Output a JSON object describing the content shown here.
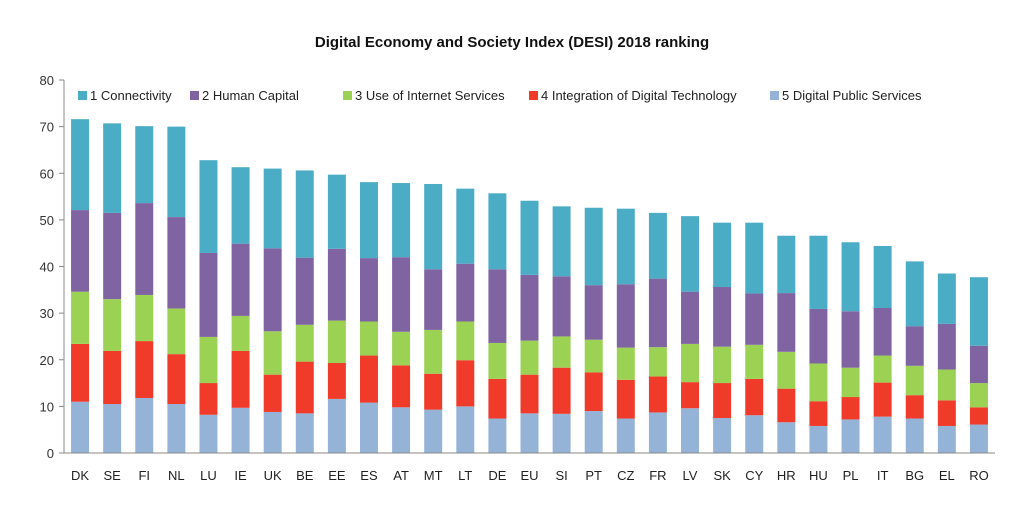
{
  "chart_data": {
    "type": "bar",
    "stacked": true,
    "title": "Digital Economy and Society Index (DESI) 2018 ranking",
    "xlabel": "",
    "ylabel": "",
    "ylim": [
      0,
      80
    ],
    "yticks": [
      0,
      10,
      20,
      30,
      40,
      50,
      60,
      70,
      80
    ],
    "grid": false,
    "legend_position": "top",
    "categories": [
      "DK",
      "SE",
      "FI",
      "NL",
      "LU",
      "IE",
      "UK",
      "BE",
      "EE",
      "ES",
      "AT",
      "MT",
      "LT",
      "DE",
      "EU",
      "SI",
      "PT",
      "CZ",
      "FR",
      "LV",
      "SK",
      "CY",
      "HR",
      "HU",
      "PL",
      "IT",
      "BG",
      "EL",
      "RO"
    ],
    "series": [
      {
        "name": "5 Digital Public Services",
        "color": "#95b3d7",
        "values": [
          11.0,
          10.5,
          11.8,
          10.5,
          8.2,
          9.7,
          8.8,
          8.5,
          11.6,
          10.8,
          9.8,
          9.3,
          10.0,
          7.4,
          8.5,
          8.4,
          9.0,
          7.4,
          8.7,
          9.6,
          7.5,
          8.1,
          6.6,
          5.8,
          7.2,
          7.8,
          7.4,
          5.8,
          6.1
        ]
      },
      {
        "name": "4 Integration of Digital Technology",
        "color": "#f03a2a",
        "values": [
          12.4,
          11.4,
          12.2,
          10.7,
          6.8,
          12.2,
          8.0,
          11.1,
          7.7,
          10.1,
          9.0,
          7.7,
          9.9,
          8.5,
          8.3,
          9.9,
          8.3,
          8.3,
          7.7,
          5.6,
          7.5,
          7.8,
          7.2,
          5.3,
          4.8,
          7.3,
          5.0,
          5.5,
          3.7
        ]
      },
      {
        "name": "3 Use of Internet Services",
        "color": "#9bd254",
        "values": [
          11.2,
          11.1,
          9.9,
          9.8,
          9.9,
          7.5,
          9.3,
          7.9,
          9.1,
          7.3,
          7.2,
          9.4,
          8.3,
          7.7,
          7.3,
          6.7,
          7.0,
          6.9,
          6.3,
          8.2,
          7.8,
          7.3,
          7.9,
          8.1,
          6.3,
          5.8,
          6.3,
          6.6,
          5.2
        ]
      },
      {
        "name": "2 Human Capital",
        "color": "#8064a2",
        "values": [
          17.5,
          18.5,
          19.7,
          19.6,
          18.0,
          15.5,
          17.8,
          14.4,
          15.4,
          13.6,
          16.0,
          13.0,
          12.4,
          15.8,
          14.1,
          12.9,
          11.7,
          13.6,
          14.7,
          11.2,
          12.8,
          11.0,
          12.6,
          11.7,
          12.1,
          10.2,
          8.5,
          9.8,
          8.0
        ]
      },
      {
        "name": "1 Connectivity",
        "color": "#4bacc6",
        "values": [
          19.5,
          19.2,
          16.5,
          19.4,
          19.9,
          16.4,
          17.1,
          18.7,
          15.9,
          16.3,
          15.9,
          18.3,
          16.1,
          16.3,
          15.9,
          15.0,
          16.6,
          16.2,
          14.1,
          16.2,
          13.8,
          15.2,
          12.3,
          15.7,
          14.8,
          13.3,
          13.9,
          10.8,
          14.7
        ]
      }
    ],
    "legend_order": [
      "1 Connectivity",
      "2 Human Capital",
      "3 Use of Internet Services",
      "4 Integration of Digital Technology",
      "5 Digital Public Services"
    ]
  }
}
